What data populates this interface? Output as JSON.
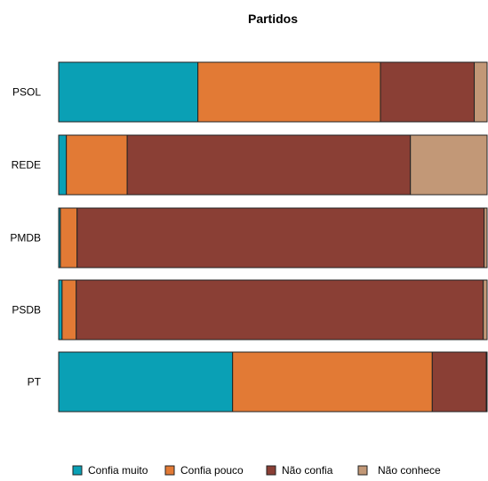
{
  "chart_data": {
    "type": "bar",
    "orientation": "horizontal",
    "stacked": true,
    "title": "Partidos",
    "xlabel": "",
    "ylabel": "",
    "xlim": [
      0,
      100
    ],
    "categories": [
      "PSOL",
      "REDE",
      "PMDB",
      "PSDB",
      "PT"
    ],
    "series": [
      {
        "name": "Confia muito",
        "color": "#0aa0b5",
        "values": [
          32.5,
          1.8,
          0.4,
          0.8,
          40.6
        ]
      },
      {
        "name": "Confia pouco",
        "color": "#e27a35",
        "values": [
          42.6,
          14.2,
          3.9,
          3.3,
          46.6
        ]
      },
      {
        "name": "Não confia",
        "color": "#8a3f35",
        "values": [
          21.9,
          66.1,
          95.0,
          95.0,
          12.6
        ]
      },
      {
        "name": "Não conhece",
        "color": "#c29877",
        "values": [
          3.0,
          17.9,
          0.7,
          0.9,
          0.2
        ]
      }
    ],
    "legend_position": "bottom",
    "grid": false
  }
}
